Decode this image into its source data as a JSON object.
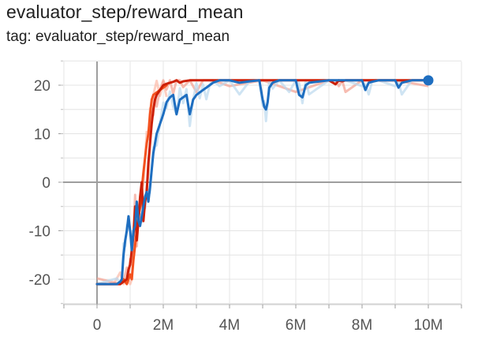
{
  "card": {
    "title": "evaluator_step/reward_mean",
    "subtitle": "tag: evaluator_step/reward_mean"
  },
  "chart_data": {
    "type": "line",
    "title": "evaluator_step/reward_mean",
    "xlabel": "",
    "ylabel": "",
    "xlim": [
      -1000000,
      11000000
    ],
    "ylim": [
      -25,
      25
    ],
    "xticks": [
      0,
      2000000,
      4000000,
      6000000,
      8000000,
      10000000
    ],
    "xtick_labels": [
      "0",
      "2M",
      "4M",
      "6M",
      "8M",
      "10M"
    ],
    "yticks": [
      -20,
      -10,
      0,
      10,
      20
    ],
    "ytick_labels": [
      "-20",
      "-10",
      "0",
      "10",
      "20"
    ],
    "grid": true,
    "series": [
      {
        "color": "#f4511e",
        "raw_color": "#fcb9a6",
        "x": [
          0,
          500000,
          700000,
          800000,
          900000,
          1000000,
          1050000,
          1100000,
          1200000,
          1300000,
          1400000,
          1450000,
          1500000,
          1550000,
          1600000,
          1650000,
          1700000,
          1800000,
          1900000,
          2000000,
          2100000
        ],
        "y": [
          -21,
          -21,
          -21,
          -20,
          -21,
          -19,
          -20,
          -16,
          -10,
          -5,
          2,
          5,
          8,
          10,
          14,
          17,
          18,
          18.5,
          19,
          19.5,
          20
        ]
      },
      {
        "color": "#cc1f06",
        "raw_color": "#f4a090",
        "x": [
          0,
          700000,
          800000,
          900000,
          950000,
          1000000,
          1050000,
          1100000,
          1150000,
          1200000,
          1250000,
          1300000,
          1350000,
          1400000,
          1450000,
          1500000,
          1550000,
          1600000,
          1650000,
          1700000,
          1750000,
          1800000,
          1900000,
          2000000,
          2100000,
          2200000,
          2300000,
          2400000,
          2500000,
          2600000,
          2800000,
          3000000,
          3200000,
          3500000,
          4000000,
          5000000,
          6000000,
          7000000,
          7200000,
          7300000,
          7400000,
          7500000,
          8000000,
          9000000,
          10000000
        ],
        "y": [
          -21,
          -21,
          -20.5,
          -20,
          -18,
          -17,
          -14,
          -11,
          -5,
          -12,
          -8,
          -3,
          0,
          -8,
          -4,
          -2,
          4,
          8,
          12,
          15,
          17,
          18,
          19,
          20,
          20.3,
          20.5,
          20.7,
          21,
          20.5,
          20.8,
          21,
          21,
          21,
          21,
          21,
          21,
          21,
          21,
          20.2,
          21,
          20.8,
          21,
          21,
          21,
          21
        ]
      },
      {
        "color": "#1e6ec0",
        "raw_color": "#bbd8ee",
        "x": [
          0,
          600000,
          700000,
          750000,
          800000,
          850000,
          900000,
          950000,
          1000000,
          1050000,
          1100000,
          1150000,
          1200000,
          1250000,
          1300000,
          1350000,
          1400000,
          1450000,
          1500000,
          1550000,
          1600000,
          1700000,
          1800000,
          1900000,
          2000000,
          2100000,
          2200000,
          2300000,
          2400000,
          2500000,
          2600000,
          2700000,
          2800000,
          2900000,
          3000000,
          3100000,
          3200000,
          3300000,
          3400000,
          3500000,
          3700000,
          4000000,
          4300000,
          4600000,
          4900000,
          5000000,
          5050000,
          5100000,
          5150000,
          5200000,
          5300000,
          5500000,
          5800000,
          6000000,
          6100000,
          6200000,
          6300000,
          6400000,
          7000000,
          7500000,
          8000000,
          8100000,
          8200000,
          8300000,
          8500000,
          9000000,
          9100000,
          9200000,
          9500000,
          10000000
        ],
        "y": [
          -21,
          -21,
          -20.5,
          -20,
          -15,
          -12,
          -10,
          -7,
          -10,
          -14,
          -10,
          -9,
          -4,
          -8,
          -9,
          -7,
          -5,
          -3,
          -2,
          -4,
          -1,
          6,
          10,
          12,
          14,
          16.5,
          17.5,
          18,
          14,
          17,
          17.5,
          18,
          14,
          17,
          18,
          18.5,
          19,
          19.5,
          20,
          20.5,
          21,
          21,
          20.5,
          20.8,
          21,
          17,
          15.5,
          15,
          16.5,
          19.5,
          20.5,
          21,
          21,
          21,
          18,
          17.5,
          20,
          20.5,
          21,
          21,
          21,
          19,
          20.5,
          20.7,
          21,
          21,
          19.5,
          20.5,
          21,
          21
        ]
      }
    ]
  }
}
